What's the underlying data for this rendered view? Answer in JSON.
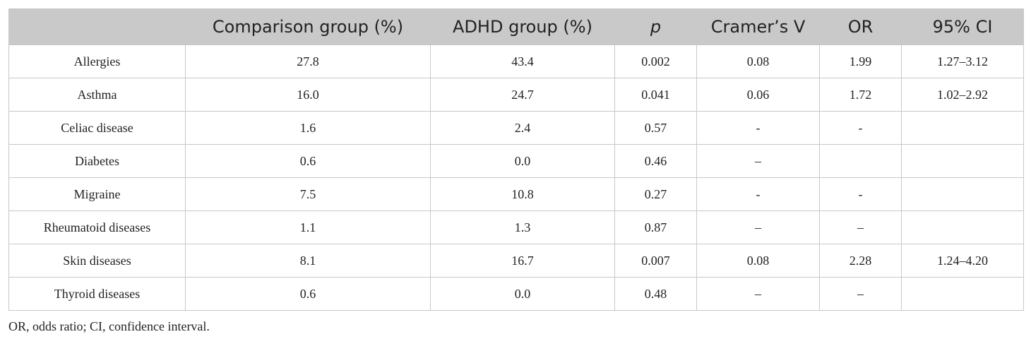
{
  "table": {
    "headers": [
      "",
      "Comparison group (%)",
      "ADHD group (%)",
      "p",
      "Cramer’s V",
      "OR",
      "95% CI"
    ],
    "rows": [
      [
        "Allergies",
        "27.8",
        "43.4",
        "0.002",
        "0.08",
        "1.99",
        "1.27–3.12"
      ],
      [
        "Asthma",
        "16.0",
        "24.7",
        "0.041",
        "0.06",
        "1.72",
        "1.02–2.92"
      ],
      [
        "Celiac disease",
        "1.6",
        "2.4",
        "0.57",
        "-",
        "-",
        ""
      ],
      [
        "Diabetes",
        "0.6",
        "0.0",
        "0.46",
        "–",
        "",
        ""
      ],
      [
        "Migraine",
        "7.5",
        "10.8",
        "0.27",
        "-",
        "-",
        ""
      ],
      [
        "Rheumatoid diseases",
        "1.1",
        "1.3",
        "0.87",
        "–",
        "–",
        ""
      ],
      [
        "Skin diseases",
        "8.1",
        "16.7",
        "0.007",
        "0.08",
        "2.28",
        "1.24–4.20"
      ],
      [
        "Thyroid diseases",
        "0.6",
        "0.0",
        "0.48",
        "–",
        "–",
        ""
      ]
    ]
  },
  "footnote": "OR, odds ratio; CI, confidence interval."
}
